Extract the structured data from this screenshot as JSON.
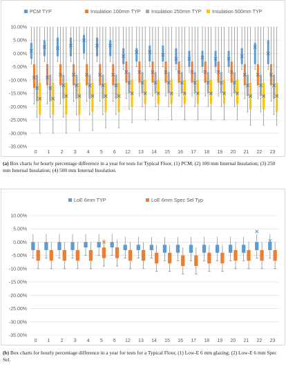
{
  "chart_data": [
    {
      "type": "box",
      "categories": [
        "0",
        "1",
        "2",
        "3",
        "4",
        "5",
        "6",
        "12",
        "13",
        "14",
        "15",
        "16",
        "17",
        "18",
        "19",
        "20",
        "21",
        "22",
        "23"
      ],
      "ylim": [
        -35,
        10
      ],
      "yticks": [
        "10.00%",
        "5.00%",
        "0.00%",
        "-5.00%",
        "-10.00%",
        "-15.00%",
        "-20.00%",
        "-25.00%",
        "-30.00%",
        "-35.00%"
      ],
      "grid": true,
      "legend_position": "top",
      "series": [
        {
          "name": "PCM TYP",
          "color": "#5B9BD5",
          "q1": [
            -2,
            -1,
            -1,
            -1,
            0,
            -1,
            -1,
            -4,
            -3,
            -3,
            -3,
            -4,
            -5,
            -5,
            -5,
            -5,
            -4,
            -4,
            -4
          ],
          "q3": [
            4,
            5,
            6,
            6,
            7,
            6,
            5,
            2,
            2,
            3,
            3,
            2,
            1,
            1,
            1,
            1,
            2,
            4,
            5
          ],
          "low": [
            -4,
            -3,
            -3,
            -3,
            -2,
            -3,
            -3,
            -6,
            -5,
            -5,
            -5,
            -6,
            -7,
            -7,
            -7,
            -7,
            -6,
            -6,
            -6
          ],
          "high": [
            10,
            10,
            10,
            10,
            10,
            10,
            10,
            10,
            10,
            10,
            10,
            10,
            10,
            10,
            10,
            10,
            10,
            10,
            10
          ],
          "mean": [
            1,
            2.5,
            2,
            3,
            5,
            3,
            3,
            -1,
            0.5,
            0.5,
            -0.5,
            -2,
            -2,
            -1.5,
            -2,
            -2,
            -1,
            2.5,
            0
          ]
        },
        {
          "name": "Insulation 100mm TYP",
          "color": "#ED7D31",
          "q1": [
            -13,
            -12,
            -12,
            -12,
            -12,
            -12,
            -12,
            -11,
            -11,
            -11,
            -11,
            -11,
            -11,
            -11,
            -11,
            -11,
            -12,
            -12,
            -12
          ],
          "q3": [
            -4,
            -4,
            -4,
            -4,
            -4,
            -4,
            -4,
            -3,
            -3,
            -3,
            -3,
            -3,
            -3,
            -3,
            -3,
            -3,
            -4,
            -4,
            -4
          ],
          "low": [
            -19,
            -19,
            -19,
            -18,
            -18,
            -18,
            -18,
            -17,
            -16,
            -16,
            -16,
            -16,
            -16,
            -16,
            -16,
            -16,
            -17,
            -17,
            -18
          ],
          "high": [
            10,
            10,
            10,
            10,
            10,
            10,
            10,
            10,
            10,
            10,
            10,
            10,
            10,
            10,
            10,
            10,
            10,
            10,
            10
          ],
          "mean": [
            -9,
            -9,
            -8,
            -8,
            -8,
            -8,
            -8,
            -7,
            -7,
            -7,
            -7,
            -7,
            -7,
            -7,
            -7,
            -7,
            -8,
            -8,
            -8
          ]
        },
        {
          "name": "Insulation 250mm TYP",
          "color": "#A5A5A5",
          "q1": [
            -18,
            -18,
            -17,
            -17,
            -17,
            -17,
            -17,
            -15,
            -15,
            -15,
            -15,
            -15,
            -15,
            -15,
            -15,
            -15,
            -16,
            -16,
            -17
          ],
          "q3": [
            -8,
            -8,
            -8,
            -8,
            -8,
            -8,
            -8,
            -7,
            -7,
            -7,
            -7,
            -7,
            -7,
            -7,
            -7,
            -7,
            -8,
            -8,
            -8
          ],
          "low": [
            -24,
            -24,
            -24,
            -23,
            -23,
            -23,
            -23,
            -21,
            -20,
            -20,
            -20,
            -20,
            -20,
            -20,
            -20,
            -20,
            -22,
            -22,
            -23
          ],
          "high": [
            10,
            10,
            10,
            10,
            10,
            10,
            10,
            10,
            10,
            10,
            10,
            10,
            10,
            10,
            10,
            10,
            10,
            10,
            10
          ],
          "mean": [
            -13,
            -13,
            -12,
            -12,
            -12,
            -12,
            -12,
            -11,
            -11,
            -11,
            -11,
            -11,
            -11,
            -11,
            -11,
            -11,
            -12,
            -12,
            -12
          ]
        },
        {
          "name": "Insulation 500mm TYP",
          "color": "#FFC000",
          "q1": [
            -23,
            -23,
            -23,
            -23,
            -22,
            -22,
            -22,
            -20,
            -19,
            -19,
            -19,
            -19,
            -19,
            -19,
            -19,
            -19,
            -21,
            -21,
            -22
          ],
          "q3": [
            -11,
            -11,
            -11,
            -11,
            -11,
            -11,
            -11,
            -10,
            -10,
            -10,
            -10,
            -10,
            -10,
            -10,
            -10,
            -10,
            -11,
            -11,
            -11
          ],
          "low": [
            -30,
            -30,
            -30,
            -29,
            -29,
            -28,
            -28,
            -26,
            -25,
            -25,
            -25,
            -25,
            -25,
            -25,
            -25,
            -25,
            -27,
            -27,
            -27
          ],
          "high": [
            10,
            10,
            10,
            10,
            10,
            10,
            10,
            10,
            10,
            10,
            10,
            10,
            10,
            10,
            10,
            10,
            10,
            10,
            10
          ],
          "mean": [
            -17,
            -17,
            -16,
            -16,
            -16,
            -16,
            -16,
            -15,
            -15,
            -15,
            -15,
            -15,
            -15,
            -15,
            -15,
            -15,
            -16,
            -16,
            -16
          ]
        }
      ]
    },
    {
      "type": "box",
      "categories": [
        "0",
        "1",
        "2",
        "3",
        "4",
        "5",
        "6",
        "12",
        "13",
        "14",
        "15",
        "16",
        "17",
        "18",
        "19",
        "20",
        "21",
        "22",
        "23"
      ],
      "ylim": [
        -35,
        10
      ],
      "yticks": [
        "10.00%",
        "5.00%",
        "0.00%",
        "-5.00%",
        "-10.00%",
        "-15.00%",
        "-20.00%",
        "-25.00%",
        "-30.00%",
        "-35.00%"
      ],
      "grid": true,
      "legend_position": "top",
      "series": [
        {
          "name": "LoE 6mm TYP",
          "color": "#5B9BD5",
          "q1": [
            -3,
            -3,
            -3,
            -3,
            -2,
            -2,
            -2,
            -3,
            -3,
            -3,
            -4,
            -4,
            -4,
            -4,
            -4,
            -4,
            -4,
            -3,
            -3
          ],
          "q3": [
            0,
            0,
            0,
            0,
            0,
            0,
            0,
            -1,
            -1,
            -1,
            -1,
            -1,
            -1,
            -1,
            -1,
            -1,
            -1,
            0,
            0
          ],
          "low": [
            -6,
            -6,
            -6,
            -6,
            -5,
            -5,
            -5,
            -6,
            -6,
            -6,
            -7,
            -7,
            -7,
            -7,
            -7,
            -7,
            -7,
            -6,
            -6
          ],
          "high": [
            3,
            3,
            3,
            3,
            3,
            3,
            3,
            2,
            2,
            2,
            2,
            2,
            2,
            2,
            2,
            2,
            2,
            3,
            3
          ],
          "mean": [
            -1.5,
            -1.5,
            -1.5,
            -1,
            -1,
            -0.5,
            -1,
            -2,
            -2,
            -2.5,
            -3,
            -3,
            -3,
            -2.5,
            -2.5,
            -2,
            -2,
            4,
            0.5
          ]
        },
        {
          "name": "LoE 6mm Spec Sel Typ",
          "color": "#ED7D31",
          "q1": [
            -7,
            -7,
            -7,
            -7,
            -7,
            -6,
            -6,
            -7,
            -7,
            -8,
            -8,
            -9,
            -9,
            -8,
            -8,
            -7,
            -7,
            -7,
            -7
          ],
          "q3": [
            -3,
            -3,
            -3,
            -3,
            -3,
            -2,
            -2,
            -3,
            -3,
            -4,
            -4,
            -5,
            -5,
            -4,
            -4,
            -3,
            -3,
            -3,
            -3
          ],
          "low": [
            -10,
            -10,
            -10,
            -10,
            -10,
            -9,
            -9,
            -10,
            -10,
            -11,
            -11,
            -12,
            -12,
            -11,
            -11,
            -10,
            -10,
            -10,
            -10
          ],
          "high": [
            0,
            0,
            0,
            0,
            0,
            1,
            1,
            0,
            0,
            -1,
            -1,
            -2,
            -2,
            -1,
            -1,
            0,
            0,
            0,
            0
          ],
          "mean": [
            -4.5,
            -4.5,
            -5,
            -4.5,
            -4.5,
            0,
            -2.5,
            -4.5,
            -5.5,
            -6,
            -6.5,
            -7,
            -7,
            -6,
            -5.5,
            -5,
            -4.5,
            -4,
            -5.5
          ]
        }
      ]
    }
  ],
  "captions": {
    "a_label": "(a)",
    "a_text": " Box charts for hourly percentage difference in a year for tests for Typical Floor, (1) PCM; (2) 100 mm Internal Insulation; (3) 250 mm Internal Insulation; (4) 500 mm Internal Insulation.",
    "b_label": "(b)",
    "b_text": " Box charts for hourly percentage difference in a year for tests for a Typical Floor, (1) Low-E 6 mm glazing; (2) Low-E 6 mm Spec Sel."
  }
}
